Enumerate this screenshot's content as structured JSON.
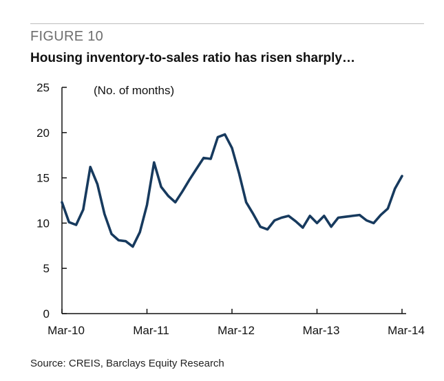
{
  "figure_label": "FIGURE 10",
  "source": "Source: CREIS, Barclays Equity Research",
  "colors": {
    "series": "#173a5e",
    "axis": "#111111",
    "rule": "#bdbdbd"
  },
  "chart_data": {
    "type": "line",
    "title": "Housing inventory-to-sales ratio has risen sharply…",
    "ylabel": "(No. of months)",
    "xlabel": "",
    "ylim": [
      0,
      25
    ],
    "yticks": [
      0,
      5,
      10,
      15,
      20,
      25
    ],
    "xticks": [
      "Mar-10",
      "Mar-11",
      "Mar-12",
      "Mar-13",
      "Mar-14"
    ],
    "grid": false,
    "legend": "none",
    "series": [
      {
        "values": [
          12.3,
          10.1,
          9.8,
          11.5,
          16.2,
          14.3,
          11.0,
          8.8,
          8.1,
          8.0,
          7.4,
          9.0,
          12.0,
          16.7,
          14.0,
          13.0,
          12.3,
          13.5,
          14.8,
          16.0,
          17.2,
          17.1,
          19.5,
          19.8,
          18.3,
          15.5,
          12.3,
          11.0,
          9.6,
          9.3,
          10.3,
          10.6,
          10.8,
          10.2,
          9.5,
          10.8,
          10.0,
          10.8,
          9.6,
          10.6,
          10.7,
          10.8,
          10.9,
          10.3,
          10.0,
          10.9,
          11.6,
          13.8,
          15.2
        ]
      }
    ]
  }
}
